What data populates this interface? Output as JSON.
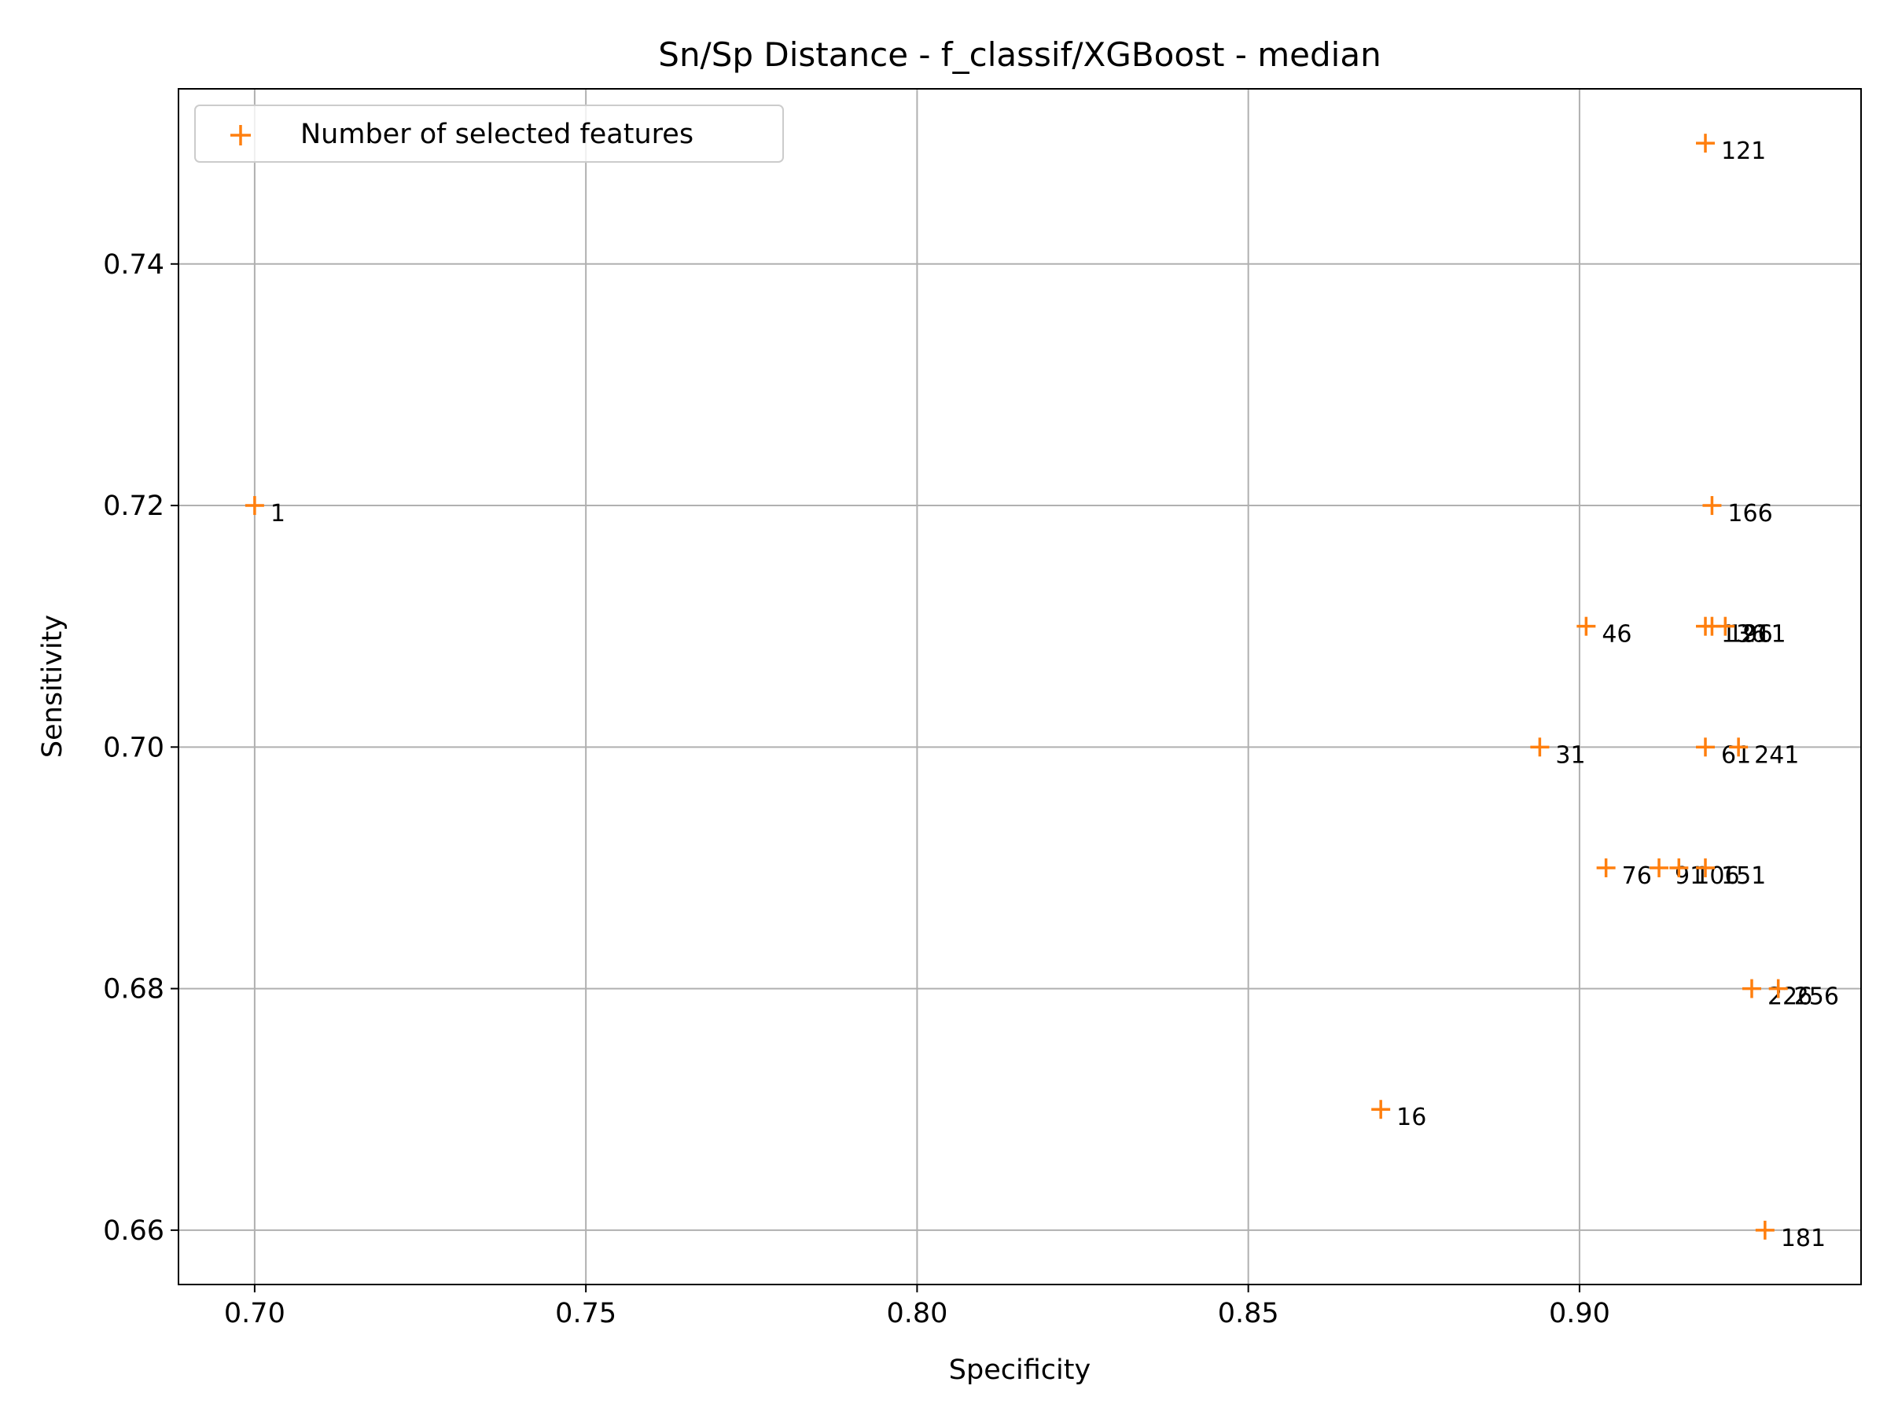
{
  "chart_data": {
    "type": "scatter",
    "title": "Sn/Sp Distance - f_classif/XGBoost - median",
    "xlabel": "Specificity",
    "ylabel": "Sensitivity",
    "xlim": [
      0.6885,
      0.9425
    ],
    "ylim": [
      0.6555,
      0.7545
    ],
    "xticks": [
      0.7,
      0.75,
      0.8,
      0.85,
      0.9
    ],
    "xtick_labels": [
      "0.70",
      "0.75",
      "0.80",
      "0.85",
      "0.90"
    ],
    "yticks": [
      0.66,
      0.68,
      0.7,
      0.72,
      0.74
    ],
    "ytick_labels": [
      "0.66",
      "0.68",
      "0.70",
      "0.72",
      "0.74"
    ],
    "grid": true,
    "legend_position": "top-left",
    "marker_color": "#ff7f0e",
    "series": [
      {
        "name": "Number of selected features",
        "points": [
          {
            "x": 0.7,
            "y": 0.72,
            "label": "1"
          },
          {
            "x": 0.87,
            "y": 0.67,
            "label": "16"
          },
          {
            "x": 0.894,
            "y": 0.7,
            "label": "31"
          },
          {
            "x": 0.901,
            "y": 0.71,
            "label": "46"
          },
          {
            "x": 0.919,
            "y": 0.7,
            "label": "61"
          },
          {
            "x": 0.904,
            "y": 0.69,
            "label": "76"
          },
          {
            "x": 0.912,
            "y": 0.69,
            "label": "91"
          },
          {
            "x": 0.915,
            "y": 0.69,
            "label": "106"
          },
          {
            "x": 0.919,
            "y": 0.75,
            "label": "121"
          },
          {
            "x": 0.919,
            "y": 0.71,
            "label": "136"
          },
          {
            "x": 0.919,
            "y": 0.69,
            "label": "151"
          },
          {
            "x": 0.92,
            "y": 0.72,
            "label": "166"
          },
          {
            "x": 0.928,
            "y": 0.66,
            "label": "181"
          },
          {
            "x": 0.92,
            "y": 0.71,
            "label": "196"
          },
          {
            "x": 0.922,
            "y": 0.71,
            "label": "211"
          },
          {
            "x": 0.926,
            "y": 0.68,
            "label": "226"
          },
          {
            "x": 0.924,
            "y": 0.7,
            "label": "241"
          },
          {
            "x": 0.93,
            "y": 0.68,
            "label": "256"
          }
        ]
      }
    ]
  }
}
